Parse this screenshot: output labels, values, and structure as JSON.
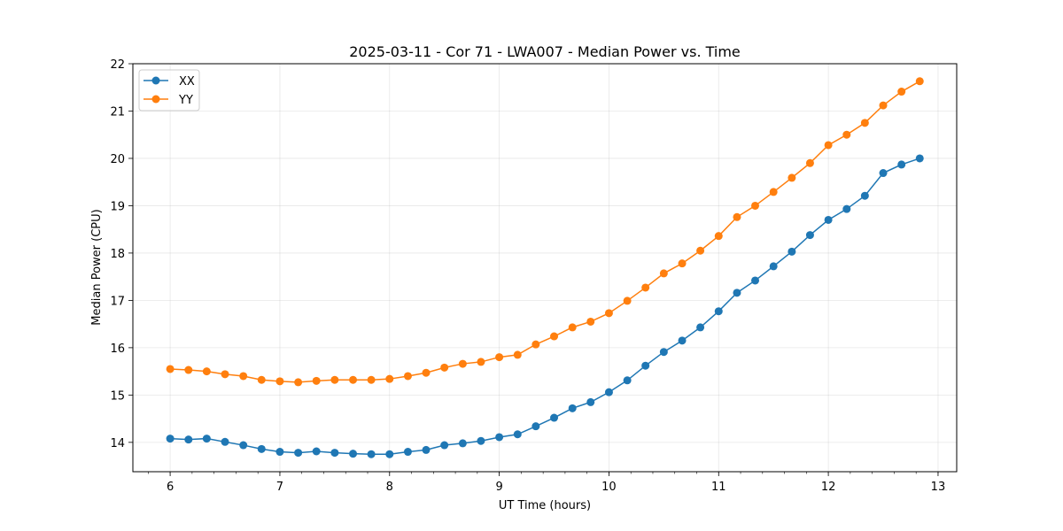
{
  "chart_data": {
    "type": "line",
    "title": "2025-03-11 - Cor 71 - LWA007 - Median Power vs. Time",
    "xlabel": "UT Time (hours)",
    "ylabel": "Median Power (CPU)",
    "xlim": [
      5.66,
      13.17
    ],
    "ylim": [
      13.38,
      22.0
    ],
    "xticks": [
      6,
      7,
      8,
      9,
      10,
      11,
      12,
      13
    ],
    "yticks": [
      14,
      15,
      16,
      17,
      18,
      19,
      20,
      21,
      22
    ],
    "grid": true,
    "legend_position": "top-left",
    "x": [
      6.0,
      6.167,
      6.333,
      6.5,
      6.667,
      6.833,
      7.0,
      7.167,
      7.333,
      7.5,
      7.667,
      7.833,
      8.0,
      8.167,
      8.333,
      8.5,
      8.667,
      8.833,
      9.0,
      9.167,
      9.333,
      9.5,
      9.667,
      9.833,
      10.0,
      10.167,
      10.333,
      10.5,
      10.667,
      10.833,
      11.0,
      11.167,
      11.333,
      11.5,
      11.667,
      11.833,
      12.0,
      12.167,
      12.333,
      12.5,
      12.667,
      12.833
    ],
    "series": [
      {
        "name": "XX",
        "color": "#1f77b4",
        "values": [
          14.08,
          14.06,
          14.08,
          14.01,
          13.94,
          13.86,
          13.8,
          13.78,
          13.81,
          13.78,
          13.76,
          13.75,
          13.75,
          13.8,
          13.84,
          13.94,
          13.98,
          14.03,
          14.11,
          14.17,
          14.34,
          14.52,
          14.72,
          14.85,
          15.06,
          15.31,
          15.62,
          15.91,
          16.15,
          16.43,
          16.77,
          17.16,
          17.42,
          17.72,
          18.03,
          18.38,
          18.7,
          18.93,
          19.21,
          19.69,
          19.87,
          20.0
        ]
      },
      {
        "name": "YY",
        "color": "#ff7f0e",
        "values": [
          15.55,
          15.53,
          15.5,
          15.44,
          15.4,
          15.32,
          15.29,
          15.27,
          15.3,
          15.32,
          15.32,
          15.32,
          15.34,
          15.4,
          15.47,
          15.58,
          15.66,
          15.7,
          15.8,
          15.85,
          16.07,
          16.24,
          16.43,
          16.55,
          16.73,
          16.99,
          17.27,
          17.57,
          17.78,
          18.05,
          18.36,
          18.76,
          19.0,
          19.29,
          19.59,
          19.9,
          20.28,
          20.5,
          20.75,
          21.12,
          21.41,
          21.63
        ]
      }
    ]
  }
}
